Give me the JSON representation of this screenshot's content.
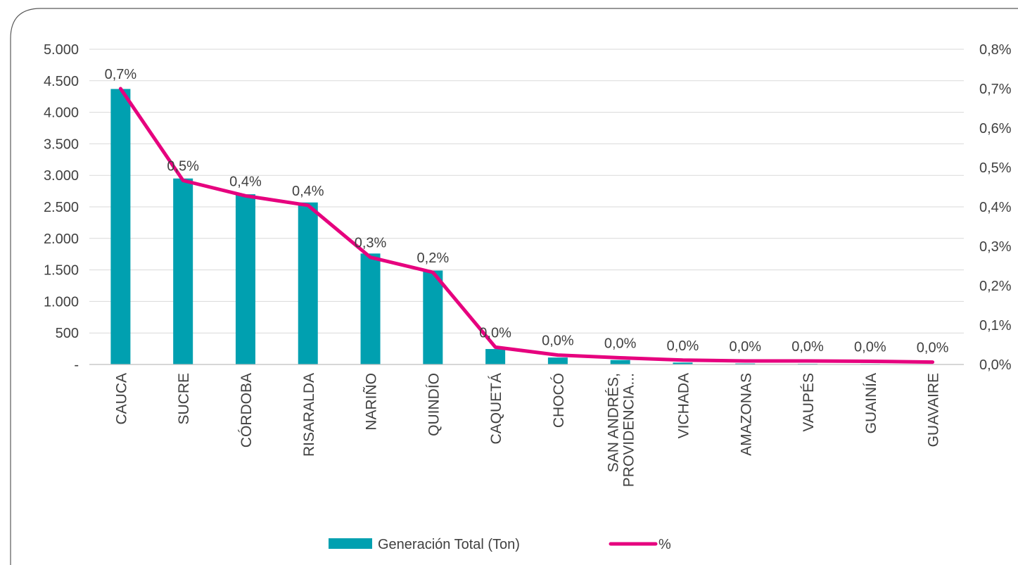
{
  "chart_data": {
    "type": "bar",
    "categories": [
      "CAUCA",
      "SUCRE",
      "CÓRDOBA",
      "RISARALDA",
      "NARIÑO",
      "QUINDÍO",
      "CAQUETÁ",
      "CHOCÓ",
      "SAN ANDRÉS,\nPROVIDENCIA...",
      "VICHADA",
      "AMAZONAS",
      "VAUPÉS",
      "GUAINÍA",
      "GUAVAIRE"
    ],
    "series": [
      {
        "name": "Generación Total (Ton)",
        "type": "bar",
        "axis": "left",
        "color": "#00A0B0",
        "values": [
          4370,
          2950,
          2700,
          2570,
          1760,
          1490,
          245,
          110,
          70,
          30,
          15,
          10,
          8,
          5
        ]
      },
      {
        "name": "%",
        "type": "line",
        "axis": "right",
        "color": "#E6007E",
        "values": [
          0.7,
          0.467,
          0.428,
          0.404,
          0.272,
          0.234,
          0.044,
          0.024,
          0.017,
          0.011,
          0.009,
          0.009,
          0.008,
          0.006
        ],
        "data_labels": [
          "0,7%",
          "0,5%",
          "0,4%",
          "0,4%",
          "0,3%",
          "0,2%",
          "0,0%",
          "0,0%",
          "0,0%",
          "0,0%",
          "0,0%",
          "0,0%",
          "0,0%",
          "0,0%"
        ]
      }
    ],
    "ylim": [
      0,
      5000
    ],
    "y_ticks": [
      0,
      500,
      1000,
      1500,
      2000,
      2500,
      3000,
      3500,
      4000,
      4500,
      5000
    ],
    "y_tick_labels": [
      "-",
      "500",
      "1.000",
      "1.500",
      "2.000",
      "2.500",
      "3.000",
      "3.500",
      "4.000",
      "4.500",
      "5.000"
    ],
    "y2lim": [
      0,
      0.8
    ],
    "y2_ticks": [
      0,
      0.1,
      0.2,
      0.3,
      0.4,
      0.5,
      0.6,
      0.7,
      0.8
    ],
    "y2_tick_labels": [
      "0,0%",
      "0,1%",
      "0,2%",
      "0,3%",
      "0,4%",
      "0,5%",
      "0,6%",
      "0,7%",
      "0,8%"
    ],
    "grid": true,
    "legend_position": "bottom"
  }
}
